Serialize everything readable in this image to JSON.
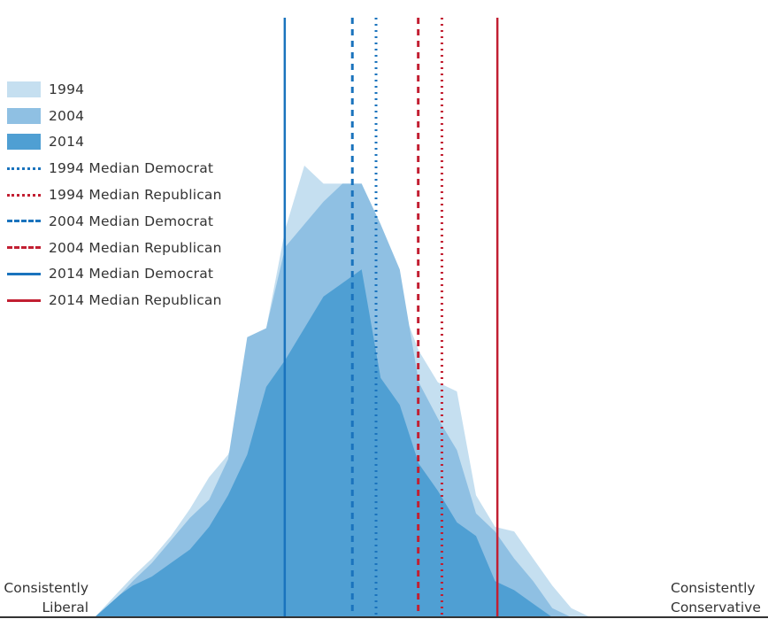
{
  "chart_data": {
    "type": "area",
    "xlabel_left": "Consistently\nLiberal",
    "xlabel_right": "Consistently\nConservative",
    "x_range": [
      0,
      1
    ],
    "y_range": [
      0,
      1
    ],
    "colors": {
      "1994": "#c5dff0",
      "2004": "#8fc0e3",
      "2014": "#4f9fd3",
      "democrat": "#1a73bd",
      "republican": "#c21f32"
    },
    "series": [
      {
        "name": "1994",
        "x": [
          0.0,
          0.044,
          0.066,
          0.099,
          0.132,
          0.165,
          0.198,
          0.231,
          0.264,
          0.297,
          0.33,
          0.363,
          0.396,
          0.429,
          0.462,
          0.495,
          0.528,
          0.561,
          0.594,
          0.627,
          0.66,
          0.693,
          0.726,
          0.759,
          0.792,
          0.825,
          0.858,
          0.891,
          0.924,
          0.957,
          1.0
        ],
        "y": [
          0.0,
          0.06,
          0.09,
          0.13,
          0.18,
          0.24,
          0.31,
          0.36,
          0.47,
          0.64,
          0.86,
          1.0,
          0.96,
          0.96,
          0.96,
          0.86,
          0.7,
          0.59,
          0.52,
          0.5,
          0.27,
          0.2,
          0.19,
          0.13,
          0.07,
          0.02,
          0.0,
          0.0,
          0.0,
          0.0,
          0.0
        ]
      },
      {
        "name": "2004",
        "x": [
          0.0,
          0.044,
          0.066,
          0.099,
          0.132,
          0.165,
          0.198,
          0.231,
          0.264,
          0.297,
          0.33,
          0.363,
          0.396,
          0.429,
          0.462,
          0.495,
          0.528,
          0.561,
          0.594,
          0.627,
          0.66,
          0.693,
          0.726,
          0.759,
          0.792,
          0.825,
          0.858,
          0.891,
          0.924,
          0.957,
          1.0
        ],
        "y": [
          0.0,
          0.05,
          0.08,
          0.12,
          0.17,
          0.22,
          0.26,
          0.35,
          0.62,
          0.64,
          0.82,
          0.87,
          0.92,
          0.96,
          0.96,
          0.87,
          0.77,
          0.52,
          0.44,
          0.37,
          0.23,
          0.19,
          0.13,
          0.08,
          0.02,
          0.0,
          0.0,
          0.0,
          0.0,
          0.0,
          0.0
        ]
      },
      {
        "name": "2014",
        "x": [
          0.0,
          0.044,
          0.066,
          0.099,
          0.132,
          0.165,
          0.198,
          0.231,
          0.264,
          0.297,
          0.33,
          0.363,
          0.396,
          0.429,
          0.462,
          0.495,
          0.528,
          0.561,
          0.594,
          0.627,
          0.66,
          0.693,
          0.726,
          0.759,
          0.792,
          0.825,
          0.858,
          0.891,
          0.924,
          0.957,
          1.0
        ],
        "y": [
          0.0,
          0.05,
          0.07,
          0.09,
          0.12,
          0.15,
          0.2,
          0.27,
          0.36,
          0.51,
          0.57,
          0.64,
          0.71,
          0.74,
          0.77,
          0.53,
          0.47,
          0.34,
          0.28,
          0.21,
          0.18,
          0.08,
          0.06,
          0.03,
          0.0,
          0.0,
          0.0,
          0.0,
          0.0,
          0.0,
          0.0
        ]
      }
    ],
    "medians": [
      {
        "name": "1994 Median Democrat",
        "x": 0.487,
        "party": "democrat",
        "style": "dotted"
      },
      {
        "name": "1994 Median Republican",
        "x": 0.601,
        "party": "republican",
        "style": "dotted"
      },
      {
        "name": "2004 Median Democrat",
        "x": 0.446,
        "party": "democrat",
        "style": "dashed"
      },
      {
        "name": "2004 Median Republican",
        "x": 0.56,
        "party": "republican",
        "style": "dashed"
      },
      {
        "name": "2014 Median Democrat",
        "x": 0.329,
        "party": "democrat",
        "style": "solid"
      },
      {
        "name": "2014 Median Republican",
        "x": 0.697,
        "party": "republican",
        "style": "solid"
      }
    ],
    "legend": {
      "placement": "left",
      "items": [
        {
          "label": "1994",
          "kind": "swatch",
          "color": "#c5dff0"
        },
        {
          "label": "2004",
          "kind": "swatch",
          "color": "#8fc0e3"
        },
        {
          "label": "2014",
          "kind": "swatch",
          "color": "#4f9fd3"
        },
        {
          "label": "1994 Median Democrat",
          "kind": "line",
          "style": "dotted",
          "color": "#1a73bd"
        },
        {
          "label": "1994 Median Republican",
          "kind": "line",
          "style": "dotted",
          "color": "#c21f32"
        },
        {
          "label": "2004 Median Democrat",
          "kind": "line",
          "style": "dashed",
          "color": "#1a73bd"
        },
        {
          "label": "2004 Median Republican",
          "kind": "line",
          "style": "dashed",
          "color": "#c21f32"
        },
        {
          "label": "2014 Median Democrat",
          "kind": "line",
          "style": "solid",
          "color": "#1a73bd"
        },
        {
          "label": "2014 Median Republican",
          "kind": "line",
          "style": "solid",
          "color": "#c21f32"
        }
      ]
    },
    "grid": false
  },
  "axis": {
    "left_line1": "Consistently",
    "left_line2": "Liberal",
    "right_line1": "Consistently",
    "right_line2": "Conservative"
  }
}
